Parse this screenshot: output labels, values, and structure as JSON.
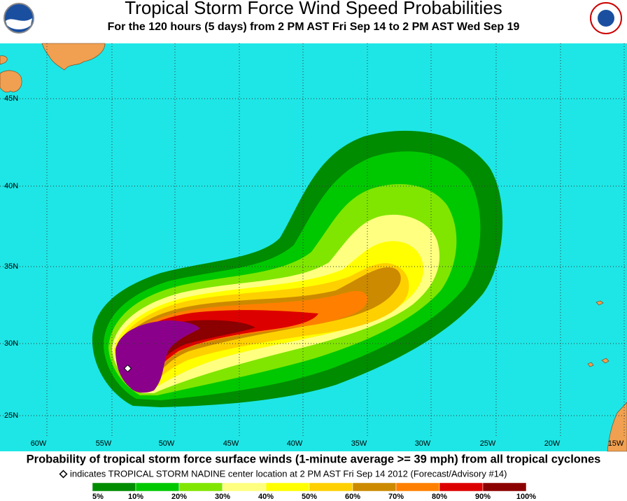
{
  "header": {
    "title": "Tropical Storm Force Wind Speed Probabilities",
    "subtitle": "For the 120 hours (5 days) from 2 PM AST Fri Sep 14 to 2 PM AST Wed Sep 19"
  },
  "map": {
    "latitude_labels": [
      "45N",
      "40N",
      "35N",
      "30N",
      "25N"
    ],
    "longitude_labels": [
      "60W",
      "55W",
      "50W",
      "45W",
      "40W",
      "35W",
      "30W",
      "25W",
      "20W",
      "15W"
    ]
  },
  "caption": "Probability of tropical storm force surface winds (1-minute average >= 39 mph) from all tropical cyclones",
  "note": "indicates TROPICAL STORM NADINE center location at 2 PM AST Fri Sep 14 2012 (Forecast/Advisory #14)",
  "legend": {
    "labels": [
      "5%",
      "10%",
      "20%",
      "30%",
      "40%",
      "50%",
      "60%",
      "70%",
      "80%",
      "90%",
      "100%"
    ],
    "colors": [
      "#008c00",
      "#00c800",
      "#80e600",
      "#ffff80",
      "#ffff00",
      "#ffd000",
      "#cc8a00",
      "#ff8000",
      "#dd0000",
      "#8b0000",
      "#8b008b"
    ]
  }
}
